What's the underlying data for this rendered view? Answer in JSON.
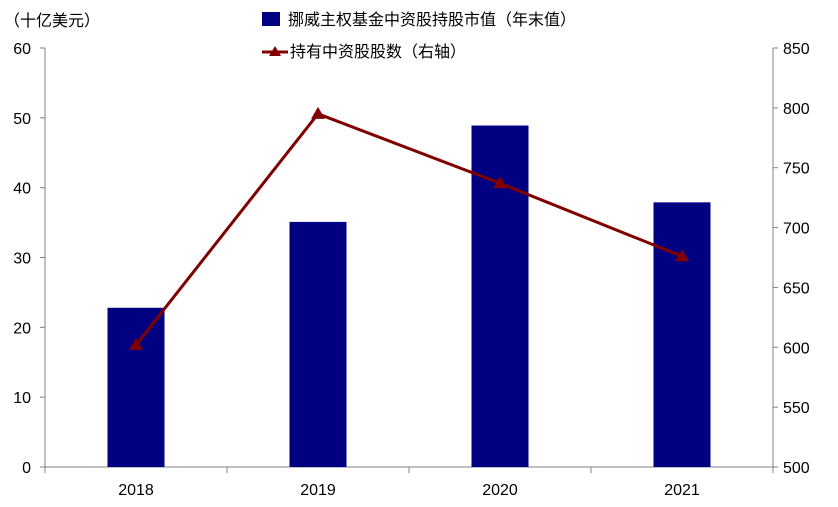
{
  "chart_data": {
    "type": "bar",
    "categories": [
      "2018",
      "2019",
      "2020",
      "2021"
    ],
    "left_axis_unit": "（十亿美元）",
    "series": [
      {
        "name": "挪威主权基金中资股持股市值（年末值）",
        "type": "bar",
        "axis": "left",
        "values": [
          22.8,
          35.1,
          48.9,
          37.9
        ]
      },
      {
        "name": "持有中资股股数（右轴）",
        "type": "line",
        "axis": "right",
        "marker": "triangle",
        "values": [
          602,
          795,
          737,
          676
        ]
      }
    ],
    "ylim": [
      0,
      60
    ],
    "yticks": [
      0,
      10,
      20,
      30,
      40,
      50,
      60
    ],
    "y2lim": [
      500,
      850
    ],
    "y2ticks": [
      500,
      550,
      600,
      650,
      700,
      750,
      800,
      850
    ],
    "legend_position": "top",
    "grid": false,
    "colors": {
      "bar": "#000080",
      "line": "#800000"
    }
  }
}
